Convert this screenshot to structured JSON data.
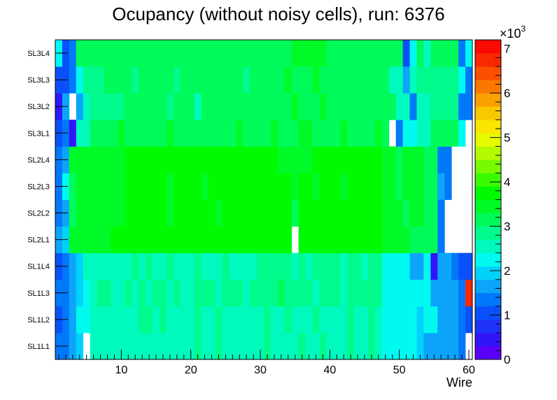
{
  "chart_data": {
    "type": "heatmap",
    "title": "Ocupancy (without noisy cells), run: 6376",
    "xlabel": "Wire",
    "ylabel": "",
    "xlim": [
      0.5,
      60.5
    ],
    "x_ticks": [
      "10",
      "20",
      "30",
      "40",
      "50",
      "60"
    ],
    "y_categories": [
      "SL1L1",
      "SL1L2",
      "SL1L3",
      "SL1L4",
      "SL2L1",
      "SL2L2",
      "SL2L3",
      "SL2L4",
      "SL3L1",
      "SL3L2",
      "SL3L3",
      "SL3L4"
    ],
    "colorbar": {
      "multiplier_label": "×10",
      "multiplier_exponent": "3",
      "zlim": [
        0,
        7.2
      ],
      "ticks": [
        "0",
        "1",
        "2",
        "3",
        "4",
        "5",
        "6",
        "7"
      ]
    },
    "values": [
      [
        1.3,
        1.3,
        1.7,
        2.0,
        -1,
        2.5,
        2.5,
        2.5,
        2.5,
        2.5,
        2.5,
        2.5,
        2.5,
        2.5,
        2.5,
        2.5,
        2.5,
        2.5,
        2.5,
        2.5,
        2.8,
        2.5,
        2.5,
        2.8,
        2.5,
        2.5,
        2.5,
        2.5,
        2.5,
        2.5,
        2.8,
        2.5,
        2.5,
        2.5,
        2.5,
        2.8,
        2.5,
        2.5,
        2.8,
        2.5,
        2.5,
        2.5,
        2.8,
        2.5,
        2.5,
        2.8,
        2.5,
        2.2,
        2.2,
        2.2,
        2.2,
        2.2,
        2.0,
        1.7,
        1.7,
        1.7,
        1.7,
        1.7,
        1.3,
        -1
      ],
      [
        1.0,
        1.3,
        1.7,
        2.2,
        2.2,
        2.5,
        2.5,
        2.5,
        2.5,
        2.5,
        2.5,
        2.5,
        2.8,
        2.8,
        2.5,
        2.8,
        2.5,
        2.5,
        2.5,
        2.5,
        2.8,
        2.5,
        2.5,
        2.8,
        2.5,
        2.5,
        2.5,
        2.5,
        2.5,
        2.5,
        2.8,
        2.5,
        2.5,
        2.8,
        2.5,
        2.5,
        2.5,
        2.8,
        2.5,
        2.5,
        2.5,
        2.5,
        2.8,
        2.5,
        2.5,
        2.8,
        2.5,
        2.2,
        2.2,
        2.2,
        2.2,
        2.2,
        2.0,
        2.2,
        2.2,
        1.7,
        1.7,
        1.7,
        1.3,
        1.0
      ],
      [
        1.3,
        1.3,
        1.7,
        2.0,
        2.2,
        2.5,
        2.8,
        2.8,
        2.5,
        2.5,
        2.8,
        2.5,
        2.8,
        2.5,
        2.8,
        2.8,
        2.5,
        2.8,
        2.5,
        2.5,
        2.8,
        2.8,
        2.8,
        2.5,
        2.8,
        2.8,
        2.8,
        2.5,
        2.8,
        2.8,
        2.8,
        2.8,
        3.0,
        2.8,
        2.8,
        2.8,
        2.8,
        2.5,
        2.8,
        2.8,
        2.8,
        2.5,
        2.8,
        2.8,
        2.8,
        2.8,
        2.8,
        2.2,
        2.2,
        2.2,
        2.2,
        2.2,
        2.2,
        2.2,
        1.7,
        1.7,
        1.7,
        1.7,
        1.3,
        6.8
      ],
      [
        1.0,
        1.3,
        1.7,
        2.0,
        2.5,
        2.5,
        2.5,
        2.5,
        2.5,
        2.5,
        2.5,
        2.8,
        2.5,
        2.8,
        2.5,
        2.5,
        2.8,
        2.5,
        2.5,
        2.5,
        2.8,
        2.5,
        2.5,
        2.5,
        2.8,
        2.5,
        2.5,
        2.5,
        2.5,
        2.8,
        2.8,
        2.8,
        2.8,
        2.8,
        2.5,
        2.8,
        2.5,
        2.8,
        2.8,
        2.8,
        2.8,
        2.5,
        2.8,
        2.8,
        2.5,
        2.8,
        2.8,
        2.2,
        2.2,
        2.2,
        2.2,
        1.7,
        1.7,
        2.2,
        0.5,
        1.7,
        1.7,
        1.3,
        1.0,
        1.0
      ],
      [
        1.7,
        2.0,
        3.3,
        3.3,
        3.3,
        3.3,
        3.3,
        3.3,
        3.8,
        3.8,
        3.8,
        3.8,
        3.8,
        3.8,
        3.8,
        3.8,
        3.8,
        3.8,
        3.8,
        3.8,
        3.8,
        3.8,
        3.8,
        3.8,
        3.8,
        3.8,
        3.8,
        3.8,
        3.8,
        3.8,
        3.8,
        3.8,
        3.8,
        3.8,
        -1,
        3.8,
        3.8,
        3.8,
        3.8,
        3.8,
        3.8,
        3.8,
        3.8,
        3.8,
        3.8,
        3.8,
        3.8,
        3.3,
        3.3,
        3.3,
        3.3,
        3.0,
        3.0,
        3.0,
        3.0,
        1.3,
        -1,
        -1,
        -1,
        -1
      ],
      [
        1.3,
        1.7,
        3.0,
        3.3,
        3.3,
        3.3,
        3.3,
        3.3,
        3.3,
        3.3,
        3.8,
        3.8,
        3.8,
        3.8,
        3.8,
        3.8,
        3.3,
        3.8,
        3.8,
        3.8,
        3.8,
        3.8,
        3.8,
        3.3,
        3.8,
        3.8,
        3.8,
        3.8,
        3.8,
        3.8,
        3.8,
        3.8,
        3.8,
        3.8,
        3.0,
        3.8,
        3.8,
        3.8,
        3.8,
        3.8,
        3.8,
        3.8,
        3.8,
        3.8,
        3.8,
        3.8,
        3.8,
        3.3,
        3.3,
        3.3,
        3.0,
        3.3,
        3.3,
        3.0,
        3.0,
        1.3,
        -1,
        -1,
        -1,
        -1
      ],
      [
        1.3,
        2.2,
        3.0,
        3.3,
        3.3,
        3.3,
        3.3,
        3.3,
        3.3,
        3.3,
        3.8,
        3.8,
        3.8,
        3.8,
        3.8,
        3.8,
        3.3,
        3.8,
        3.8,
        3.8,
        3.8,
        3.3,
        3.8,
        3.8,
        3.8,
        3.8,
        3.8,
        3.8,
        3.8,
        3.8,
        3.8,
        3.8,
        3.8,
        3.8,
        3.3,
        3.8,
        3.8,
        3.3,
        3.8,
        3.8,
        3.8,
        3.3,
        3.8,
        3.8,
        3.8,
        3.8,
        3.8,
        3.3,
        3.3,
        3.0,
        3.3,
        3.3,
        3.3,
        3.0,
        3.0,
        1.7,
        1.3,
        -1,
        -1,
        -1
      ],
      [
        1.3,
        1.7,
        3.3,
        3.3,
        3.3,
        3.3,
        3.3,
        3.3,
        3.3,
        3.3,
        3.8,
        3.8,
        3.8,
        3.8,
        3.8,
        3.8,
        3.8,
        3.8,
        3.8,
        3.8,
        3.8,
        3.8,
        3.8,
        3.8,
        3.8,
        3.8,
        3.8,
        3.8,
        3.8,
        3.8,
        3.8,
        3.8,
        3.3,
        3.3,
        3.3,
        3.3,
        3.3,
        3.8,
        3.8,
        3.8,
        3.8,
        3.8,
        3.8,
        3.8,
        3.8,
        3.8,
        3.8,
        3.3,
        3.3,
        3.0,
        3.3,
        3.3,
        3.3,
        3.0,
        3.0,
        1.3,
        1.3,
        -1,
        -1,
        -1
      ],
      [
        1.0,
        1.3,
        0.5,
        2.5,
        2.5,
        3.0,
        3.0,
        3.0,
        3.0,
        3.3,
        3.0,
        3.0,
        3.0,
        3.0,
        3.0,
        3.0,
        3.3,
        3.0,
        3.0,
        3.0,
        3.0,
        3.0,
        3.0,
        3.0,
        3.0,
        3.0,
        3.3,
        3.0,
        3.0,
        3.0,
        3.0,
        3.3,
        3.0,
        3.0,
        3.0,
        3.3,
        3.3,
        3.0,
        3.0,
        3.0,
        3.0,
        3.3,
        3.0,
        3.0,
        3.0,
        3.0,
        3.3,
        3.0,
        -1,
        1.3,
        2.2,
        2.2,
        2.5,
        2.5,
        3.0,
        3.0,
        3.0,
        3.0,
        2.2,
        -1
      ],
      [
        0.5,
        1.7,
        -1,
        1.7,
        2.5,
        2.8,
        2.8,
        2.8,
        2.8,
        2.8,
        3.0,
        3.0,
        3.0,
        3.0,
        3.0,
        3.0,
        2.8,
        3.0,
        3.0,
        3.0,
        2.5,
        3.0,
        3.0,
        3.0,
        3.0,
        3.0,
        3.0,
        3.0,
        3.0,
        3.0,
        3.0,
        3.0,
        3.0,
        3.0,
        3.3,
        3.0,
        3.0,
        3.0,
        3.3,
        3.0,
        3.0,
        3.0,
        3.0,
        3.0,
        3.0,
        3.0,
        3.0,
        3.0,
        3.0,
        2.5,
        2.5,
        1.3,
        2.5,
        2.5,
        2.8,
        2.8,
        2.8,
        2.8,
        1.3,
        1.3
      ],
      [
        1.0,
        1.0,
        1.3,
        2.2,
        2.8,
        2.8,
        2.8,
        3.0,
        3.0,
        3.0,
        3.0,
        2.8,
        3.0,
        3.0,
        3.0,
        3.0,
        3.0,
        2.8,
        3.0,
        3.0,
        3.0,
        3.0,
        3.0,
        3.0,
        3.0,
        3.0,
        3.0,
        2.8,
        3.0,
        3.0,
        3.0,
        3.0,
        3.0,
        3.3,
        3.0,
        3.0,
        3.0,
        3.3,
        3.0,
        3.0,
        3.0,
        3.0,
        3.0,
        3.0,
        3.0,
        3.0,
        3.0,
        3.0,
        2.5,
        2.5,
        1.7,
        2.5,
        2.8,
        2.8,
        2.8,
        2.8,
        2.8,
        2.8,
        2.2,
        1.3
      ],
      [
        2.2,
        1.0,
        1.3,
        3.0,
        3.0,
        3.0,
        3.0,
        3.0,
        3.0,
        3.0,
        3.0,
        3.0,
        3.0,
        3.0,
        3.0,
        3.0,
        3.0,
        3.0,
        3.0,
        3.0,
        3.0,
        3.0,
        3.0,
        3.0,
        3.0,
        3.0,
        3.0,
        3.0,
        3.0,
        3.0,
        3.0,
        3.0,
        3.0,
        3.0,
        3.3,
        3.3,
        3.3,
        3.3,
        3.3,
        3.0,
        3.0,
        3.0,
        3.0,
        3.0,
        3.0,
        3.0,
        3.0,
        3.0,
        3.0,
        3.0,
        1.0,
        2.2,
        3.0,
        2.5,
        3.0,
        3.0,
        3.0,
        3.0,
        1.3,
        2.2
      ]
    ]
  }
}
